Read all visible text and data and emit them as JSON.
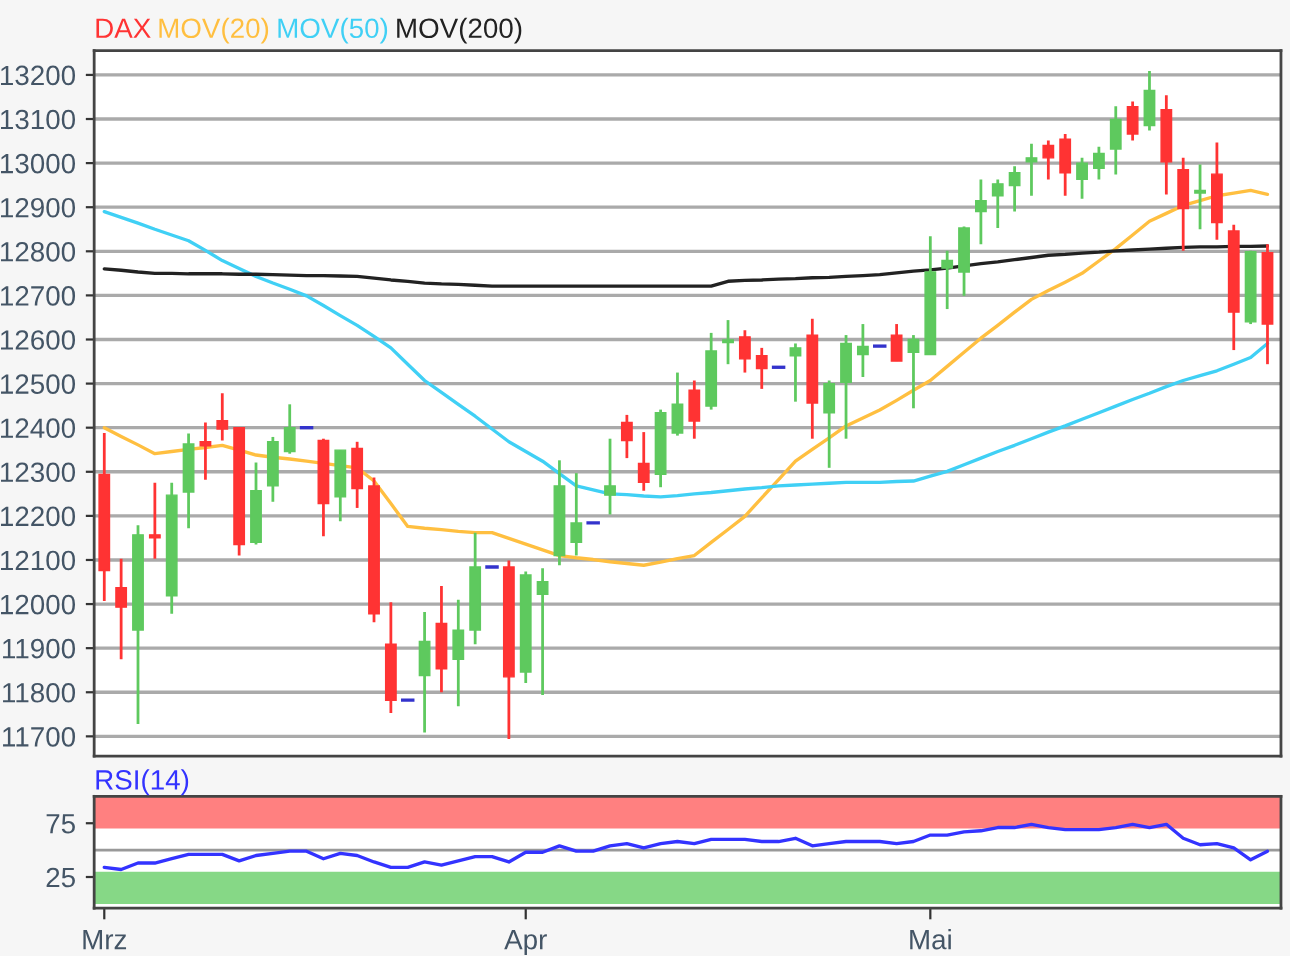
{
  "chart_data": [
    {
      "type": "candlestick",
      "legend": "top left",
      "grid": "y",
      "tick_labels": "y",
      "categories": [
        null,
        null,
        null,
        null,
        null,
        null,
        null,
        null,
        null,
        null,
        null,
        null,
        null,
        null,
        null,
        null,
        null,
        null,
        null,
        null,
        null,
        null,
        null,
        null,
        null,
        null,
        null,
        null,
        null,
        null,
        null,
        null,
        null,
        null,
        null,
        null,
        null,
        null,
        null,
        null,
        null,
        null,
        null,
        null,
        null,
        null,
        null,
        null,
        null,
        null,
        null,
        null,
        null,
        null,
        null,
        null,
        null,
        null,
        null,
        null,
        null,
        null,
        null,
        null,
        null,
        null,
        null,
        null,
        null,
        null
      ],
      "ylim": [
        11655,
        13255
      ],
      "yticks": [
        11700,
        11800,
        11900,
        12000,
        12100,
        12200,
        12300,
        12400,
        12500,
        12600,
        12700,
        12800,
        12900,
        13000,
        13100,
        13200
      ],
      "series": [
        {
          "name": "DAX",
          "ohlc": [
            [
              12294,
              12388,
              12007,
              12076
            ],
            [
              12037,
              12103,
              11875,
              11993
            ],
            [
              11941,
              12179,
              11728,
              12157
            ],
            [
              12157,
              12275,
              12103,
              12150
            ],
            [
              12019,
              12275,
              11978,
              12247
            ],
            [
              12254,
              12387,
              12172,
              12363
            ],
            [
              12368,
              12412,
              12282,
              12359
            ],
            [
              12416,
              12478,
              12371,
              12397
            ],
            [
              12400,
              12400,
              12110,
              12135
            ],
            [
              12140,
              12321,
              12135,
              12257
            ],
            [
              12268,
              12379,
              12232,
              12368
            ],
            [
              12346,
              12453,
              12341,
              12400
            ],
            [
              12400,
              12400,
              12400,
              12400
            ],
            [
              12371,
              12375,
              12154,
              12228
            ],
            [
              12243,
              12349,
              12188,
              12349
            ],
            [
              12353,
              12368,
              12218,
              12262
            ],
            [
              12268,
              12287,
              11959,
              11978
            ],
            [
              11909,
              12004,
              11753,
              11782
            ],
            [
              11782,
              11782,
              11782,
              11782
            ],
            [
              11838,
              11982,
              11709,
              11915
            ],
            [
              11956,
              12041,
              11800,
              11853
            ],
            [
              11875,
              12010,
              11768,
              11941
            ],
            [
              11941,
              12162,
              11909,
              12084
            ],
            [
              12084,
              12084,
              12084,
              12084
            ],
            [
              12084,
              12099,
              11694,
              11835
            ],
            [
              11846,
              12074,
              11821,
              12066
            ],
            [
              12022,
              12081,
              11794,
              12051
            ],
            [
              12110,
              12326,
              12088,
              12268
            ],
            [
              12140,
              12297,
              12110,
              12184
            ],
            [
              12184,
              12184,
              12184,
              12184
            ],
            [
              12247,
              12375,
              12203,
              12268
            ],
            [
              12412,
              12429,
              12331,
              12371
            ],
            [
              12319,
              12390,
              12257,
              12276
            ],
            [
              12294,
              12441,
              12265,
              12434
            ],
            [
              12388,
              12525,
              12382,
              12453
            ],
            [
              12485,
              12507,
              12375,
              12415
            ],
            [
              12449,
              12615,
              12441,
              12574
            ],
            [
              12593,
              12644,
              12544,
              12599
            ],
            [
              12606,
              12621,
              12525,
              12556
            ],
            [
              12563,
              12581,
              12488,
              12534
            ],
            [
              12537,
              12537,
              12537,
              12537
            ],
            [
              12563,
              12591,
              12459,
              12581
            ],
            [
              12610,
              12647,
              12375,
              12456
            ],
            [
              12434,
              12507,
              12309,
              12500
            ],
            [
              12503,
              12610,
              12375,
              12591
            ],
            [
              12566,
              12635,
              12515,
              12584
            ],
            [
              12585,
              12585,
              12585,
              12585
            ],
            [
              12610,
              12635,
              12551,
              12551
            ],
            [
              12571,
              12610,
              12444,
              12600
            ],
            [
              12566,
              12834,
              12566,
              12753
            ],
            [
              12762,
              12801,
              12669,
              12779
            ],
            [
              12753,
              12856,
              12699,
              12853
            ],
            [
              12890,
              12963,
              12816,
              12915
            ],
            [
              12926,
              12963,
              12853,
              12953
            ],
            [
              12949,
              12993,
              12890,
              12978
            ],
            [
              13003,
              13044,
              12926,
              13012
            ],
            [
              13040,
              13051,
              12963,
              13012
            ],
            [
              13054,
              13066,
              12926,
              12978
            ],
            [
              12963,
              13012,
              12919,
              13000
            ],
            [
              12988,
              13037,
              12963,
              13022
            ],
            [
              13032,
              13129,
              12974,
              13099
            ],
            [
              13128,
              13140,
              13051,
              13066
            ],
            [
              13085,
              13209,
              13074,
              13165
            ],
            [
              13121,
              13154,
              12929,
              13003
            ],
            [
              12985,
              13012,
              12801,
              12897
            ],
            [
              12932,
              12997,
              12850,
              12938
            ],
            [
              12975,
              13047,
              12826,
              12865
            ],
            [
              12846,
              12860,
              12576,
              12662
            ],
            [
              12640,
              12801,
              12635,
              12799
            ],
            [
              12797,
              12816,
              12544,
              12635
            ]
          ],
          "color": "#ff3333",
          "colors": [
            "#ff3333",
            "#ff3333",
            "#5ec95e",
            "#ff3333",
            "#5ec95e",
            "#5ec95e",
            "#ff3333",
            "#ff3333",
            "#ff3333",
            "#5ec95e",
            "#5ec95e",
            "#5ec95e",
            "#3333cc",
            "#ff3333",
            "#5ec95e",
            "#ff3333",
            "#ff3333",
            "#ff3333",
            "#3333cc",
            "#5ec95e",
            "#ff3333",
            "#5ec95e",
            "#5ec95e",
            "#3333cc",
            "#ff3333",
            "#5ec95e",
            "#5ec95e",
            "#5ec95e",
            "#5ec95e",
            "#3333cc",
            "#5ec95e",
            "#ff3333",
            "#ff3333",
            "#5ec95e",
            "#5ec95e",
            "#ff3333",
            "#5ec95e",
            "#5ec95e",
            "#ff3333",
            "#ff3333",
            "#3333cc",
            "#5ec95e",
            "#ff3333",
            "#5ec95e",
            "#5ec95e",
            "#5ec95e",
            "#3333cc",
            "#ff3333",
            "#5ec95e",
            "#5ec95e",
            "#5ec95e",
            "#5ec95e",
            "#5ec95e",
            "#5ec95e",
            "#5ec95e",
            "#5ec95e",
            "#ff3333",
            "#ff3333",
            "#5ec95e",
            "#5ec95e",
            "#5ec95e",
            "#ff3333",
            "#5ec95e",
            "#ff3333",
            "#ff3333",
            "#5ec95e",
            "#ff3333",
            "#ff3333",
            "#5ec95e",
            "#ff3333"
          ]
        },
        {
          "name": "MOV(20)",
          "type": "line",
          "color": "#ffbf40",
          "values": [
            12400,
            12380,
            12361,
            12341,
            12346,
            12351,
            12355,
            12360,
            12349,
            12338,
            12333,
            12329,
            12324,
            12319,
            12314,
            12309,
            12279,
            12228,
            12176,
            12172,
            12169,
            12165,
            12162,
            12162,
            12149,
            12136,
            12123,
            12110,
            12105,
            12101,
            12096,
            12092,
            12088,
            12095,
            12103,
            12110,
            12140,
            12169,
            12199,
            12241,
            12282,
            12324,
            12351,
            12377,
            12404,
            12422,
            12440,
            12462,
            12485,
            12507,
            12539,
            12571,
            12603,
            12632,
            12662,
            12691,
            12711,
            12730,
            12750,
            12778,
            12806,
            12837,
            12868,
            12886,
            12904,
            12915,
            12926,
            12932,
            12938,
            12929
          ]
        },
        {
          "name": "MOV(50)",
          "type": "line",
          "color": "#40d0f5",
          "values": [
            12890,
            12877,
            12864,
            12850,
            12837,
            12824,
            12802,
            12779,
            12761,
            12743,
            12728,
            12714,
            12699,
            12677,
            12654,
            12632,
            12607,
            12581,
            12544,
            12507,
            12480,
            12453,
            12426,
            12397,
            12368,
            12346,
            12324,
            12296,
            12268,
            12259,
            12250,
            12248,
            12245,
            12243,
            12246,
            12250,
            12253,
            12257,
            12261,
            12264,
            12268,
            12270,
            12272,
            12274,
            12276,
            12276,
            12276,
            12278,
            12279,
            12290,
            12301,
            12316,
            12331,
            12346,
            12360,
            12375,
            12390,
            12404,
            12419,
            12434,
            12449,
            12464,
            12478,
            12493,
            12507,
            12518,
            12529,
            12544,
            12559,
            12591
          ]
        },
        {
          "name": "MOV(200)",
          "type": "line",
          "color": "#222222",
          "values": [
            12760,
            12757,
            12753,
            12750,
            12750,
            12749,
            12749,
            12749,
            12748,
            12748,
            12747,
            12746,
            12745,
            12745,
            12744,
            12743,
            12739,
            12735,
            12732,
            12728,
            12726,
            12725,
            12723,
            12721,
            12721,
            12721,
            12721,
            12721,
            12721,
            12721,
            12721,
            12721,
            12721,
            12721,
            12721,
            12721,
            12721,
            12732,
            12734,
            12735,
            12737,
            12738,
            12740,
            12741,
            12743,
            12745,
            12747,
            12751,
            12755,
            12758,
            12762,
            12767,
            12772,
            12776,
            12781,
            12786,
            12791,
            12793,
            12796,
            12798,
            12801,
            12803,
            12805,
            12807,
            12809,
            12810,
            12810,
            12811,
            12811,
            12812
          ]
        }
      ]
    },
    {
      "type": "line",
      "legend": "top left",
      "ylim": [
        -4,
        100
      ],
      "yticks": [
        25,
        75
      ],
      "categories": [
        "Mrz",
        null,
        null,
        null,
        null,
        null,
        null,
        null,
        null,
        null,
        null,
        null,
        null,
        null,
        null,
        null,
        null,
        null,
        null,
        null,
        null,
        null,
        null,
        null,
        null,
        "Apr",
        null,
        null,
        null,
        null,
        null,
        null,
        null,
        null,
        null,
        null,
        null,
        null,
        null,
        null,
        null,
        null,
        null,
        null,
        null,
        null,
        null,
        null,
        null,
        "Mai",
        null,
        null,
        null,
        null,
        null,
        null,
        null,
        null,
        null,
        null,
        null,
        null,
        null,
        null,
        null,
        null,
        null,
        null,
        null,
        null
      ],
      "bands": [
        {
          "axis": "y",
          "from": 70,
          "to": 100,
          "color": "#ff8080"
        },
        {
          "axis": "y",
          "from": 0,
          "to": 30,
          "color": "#86d886"
        }
      ],
      "ref_lines": [
        {
          "axis": "y",
          "value": 50,
          "color": "#999999"
        }
      ],
      "series": [
        {
          "name": "RSI(14)",
          "color": "#3333ff",
          "values": [
            34,
            32,
            38,
            38,
            42,
            46,
            46,
            46,
            40,
            45,
            47,
            49,
            49,
            42,
            47,
            45,
            39,
            34,
            34,
            39,
            36,
            40,
            44,
            44,
            39,
            48,
            48,
            54,
            49,
            49,
            54,
            56,
            52,
            56,
            58,
            56,
            60,
            60,
            60,
            58,
            58,
            61,
            54,
            56,
            58,
            58,
            58,
            56,
            58,
            64,
            64,
            67,
            68,
            71,
            71,
            74,
            71,
            69,
            69,
            69,
            71,
            74,
            71,
            74,
            61,
            55,
            56,
            52,
            41,
            49
          ]
        }
      ]
    }
  ]
}
